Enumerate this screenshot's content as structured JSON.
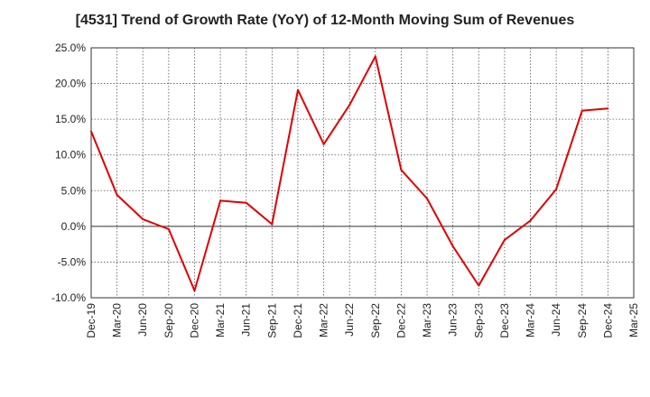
{
  "chart_data": {
    "type": "line",
    "title": "[4531]  Trend of Growth Rate (YoY) of 12-Month Moving Sum of Revenues",
    "xlabel": "",
    "ylabel": "",
    "categories": [
      "Dec-19",
      "Mar-20",
      "Jun-20",
      "Sep-20",
      "Dec-20",
      "Mar-21",
      "Jun-21",
      "Sep-21",
      "Dec-21",
      "Mar-22",
      "Jun-22",
      "Sep-22",
      "Dec-22",
      "Mar-23",
      "Jun-23",
      "Sep-23",
      "Dec-23",
      "Mar-24",
      "Jun-24",
      "Sep-24",
      "Dec-24",
      "Mar-25"
    ],
    "y_tick_labels": [
      "25.0%",
      "20.0%",
      "15.0%",
      "10.0%",
      "5.0%",
      "0.0%",
      "-5.0%",
      "-10.0%"
    ],
    "ylim": [
      -10,
      25
    ],
    "grid": true,
    "series": [
      {
        "color": "#e00000",
        "values": [
          13.3,
          4.4,
          1.0,
          -0.4,
          -9.0,
          3.6,
          3.3,
          0.3,
          19.1,
          11.5,
          17.0,
          23.8,
          7.9,
          3.9,
          -2.8,
          -8.3,
          -1.9,
          0.8,
          5.2,
          16.2,
          16.5,
          null
        ]
      }
    ]
  }
}
